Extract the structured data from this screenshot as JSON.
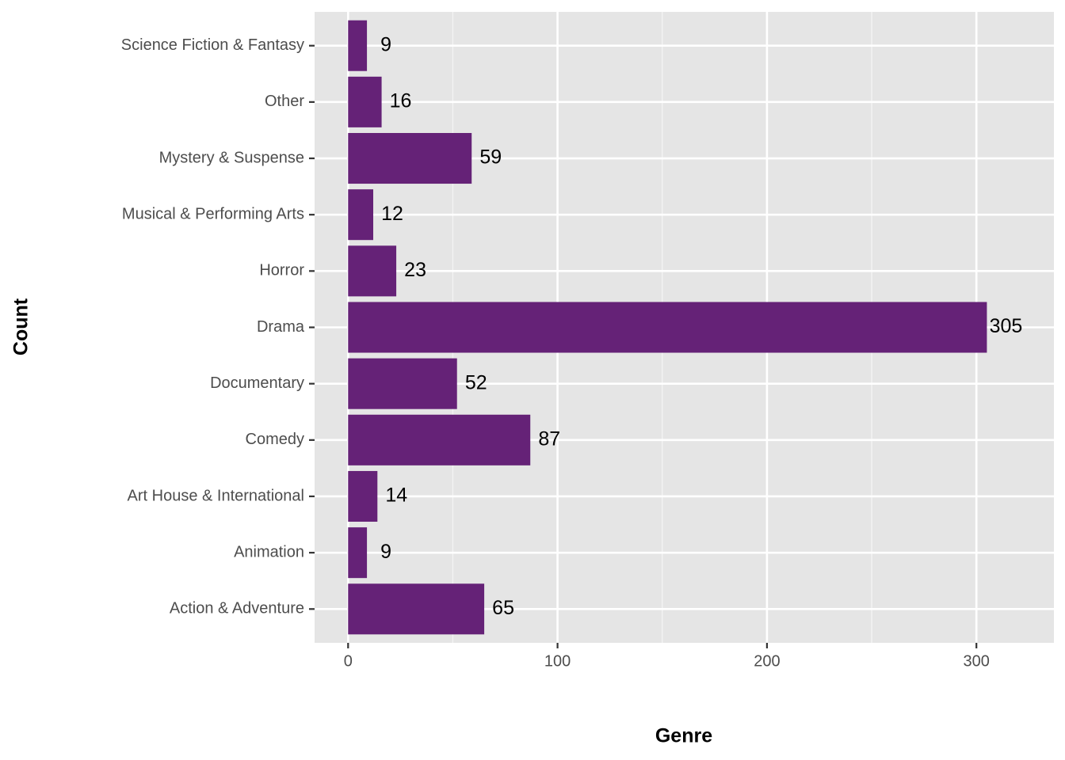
{
  "chart_data": {
    "type": "barh",
    "xlabel": "Genre",
    "ylabel": "Count",
    "categories": [
      "Action & Adventure",
      "Animation",
      "Art House & International",
      "Comedy",
      "Documentary",
      "Drama",
      "Horror",
      "Musical & Performing Arts",
      "Mystery & Suspense",
      "Other",
      "Science Fiction & Fantasy"
    ],
    "values": [
      65,
      9,
      14,
      87,
      52,
      305,
      23,
      12,
      59,
      16,
      9
    ],
    "color": "#652277",
    "xlim": [
      -16,
      337
    ],
    "xticks": [
      0,
      100,
      200,
      300
    ],
    "x_minor_grid": [
      50,
      150,
      250
    ],
    "grid": true,
    "value_labels_shown": true
  }
}
